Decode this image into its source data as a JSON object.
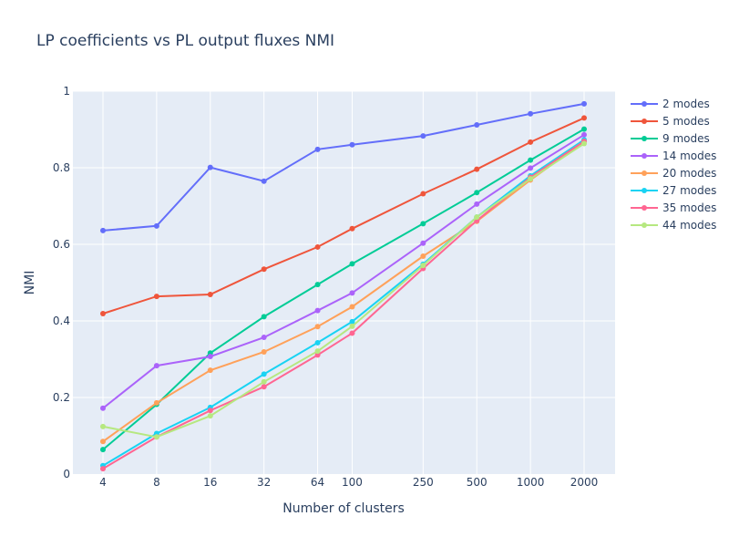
{
  "chart_data": {
    "type": "line",
    "title": "LP coefficients vs PL output fluxes NMI",
    "xlabel": "Number of clusters",
    "ylabel": "NMI",
    "x_scale": "log",
    "x": [
      4,
      8,
      16,
      32,
      64,
      100,
      250,
      500,
      1000,
      2000
    ],
    "x_ticks": [
      "4",
      "8",
      "16",
      "32",
      "64",
      "100",
      "250",
      "500",
      "1000",
      "2000"
    ],
    "y_ticks": [
      "0",
      "0.2",
      "0.4",
      "0.6",
      "0.8",
      "1"
    ],
    "ylim": [
      0,
      1
    ],
    "grid": true,
    "legend_position": "right",
    "series": [
      {
        "name": "2 modes",
        "color": "#636efa",
        "values": [
          0.636,
          0.648,
          0.801,
          0.765,
          0.848,
          0.86,
          0.883,
          0.912,
          0.941,
          0.967
        ]
      },
      {
        "name": "5 modes",
        "color": "#ef553b",
        "values": [
          0.419,
          0.464,
          0.469,
          0.535,
          0.593,
          0.641,
          0.732,
          0.796,
          0.867,
          0.93
        ]
      },
      {
        "name": "9 modes",
        "color": "#00cc96",
        "values": [
          0.064,
          0.182,
          0.316,
          0.411,
          0.495,
          0.549,
          0.654,
          0.735,
          0.82,
          0.901
        ]
      },
      {
        "name": "14 modes",
        "color": "#ab63fa",
        "values": [
          0.172,
          0.283,
          0.307,
          0.357,
          0.427,
          0.473,
          0.603,
          0.705,
          0.799,
          0.886
        ]
      },
      {
        "name": "20 modes",
        "color": "#ffa15a",
        "values": [
          0.085,
          0.186,
          0.271,
          0.319,
          0.385,
          0.437,
          0.569,
          0.66,
          0.768,
          0.869
        ]
      },
      {
        "name": "27 modes",
        "color": "#19d3f3",
        "values": [
          0.022,
          0.106,
          0.174,
          0.261,
          0.343,
          0.398,
          0.548,
          0.671,
          0.779,
          0.873
        ]
      },
      {
        "name": "35 modes",
        "color": "#ff6692",
        "values": [
          0.014,
          0.097,
          0.166,
          0.228,
          0.311,
          0.368,
          0.537,
          0.662,
          0.775,
          0.869
        ]
      },
      {
        "name": "44 modes",
        "color": "#b6e880",
        "values": [
          0.124,
          0.097,
          0.152,
          0.241,
          0.321,
          0.386,
          0.545,
          0.671,
          0.771,
          0.863
        ]
      }
    ]
  }
}
